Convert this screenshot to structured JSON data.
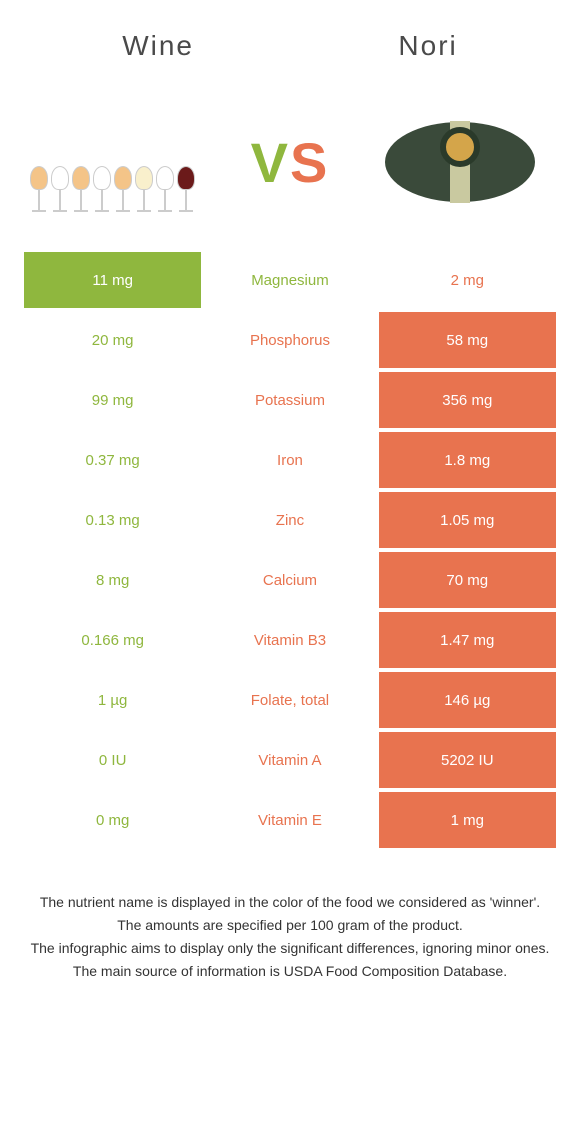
{
  "header": {
    "left_title": "Wine",
    "right_title": "Nori",
    "vs_v": "V",
    "vs_s": "S"
  },
  "colors": {
    "green": "#8fb73e",
    "orange": "#e8734f",
    "white": "#ffffff"
  },
  "glass_fills": [
    "#f4c488",
    "#ffffff",
    "#f4c488",
    "#ffffff",
    "#f4c488",
    "#f9f0cc",
    "#ffffff",
    "#6b1a1a"
  ],
  "nutrients": [
    {
      "name": "Magnesium",
      "left": "11 mg",
      "right": "2 mg",
      "winner": "left"
    },
    {
      "name": "Phosphorus",
      "left": "20 mg",
      "right": "58 mg",
      "winner": "right"
    },
    {
      "name": "Potassium",
      "left": "99 mg",
      "right": "356 mg",
      "winner": "right"
    },
    {
      "name": "Iron",
      "left": "0.37 mg",
      "right": "1.8 mg",
      "winner": "right"
    },
    {
      "name": "Zinc",
      "left": "0.13 mg",
      "right": "1.05 mg",
      "winner": "right"
    },
    {
      "name": "Calcium",
      "left": "8 mg",
      "right": "70 mg",
      "winner": "right"
    },
    {
      "name": "Vitamin B3",
      "left": "0.166 mg",
      "right": "1.47 mg",
      "winner": "right"
    },
    {
      "name": "Folate, total",
      "left": "1 µg",
      "right": "146 µg",
      "winner": "right"
    },
    {
      "name": "Vitamin A",
      "left": "0 IU",
      "right": "5202 IU",
      "winner": "right"
    },
    {
      "name": "Vitamin E",
      "left": "0 mg",
      "right": "1 mg",
      "winner": "right"
    }
  ],
  "footer": {
    "line1": "The nutrient name is displayed in the color of the food we considered as 'winner'.",
    "line2": "The amounts are specified per 100 gram of the product.",
    "line3": "The infographic aims to display only the significant differences, ignoring minor ones.",
    "line4": "The main source of information is USDA Food Composition Database."
  }
}
